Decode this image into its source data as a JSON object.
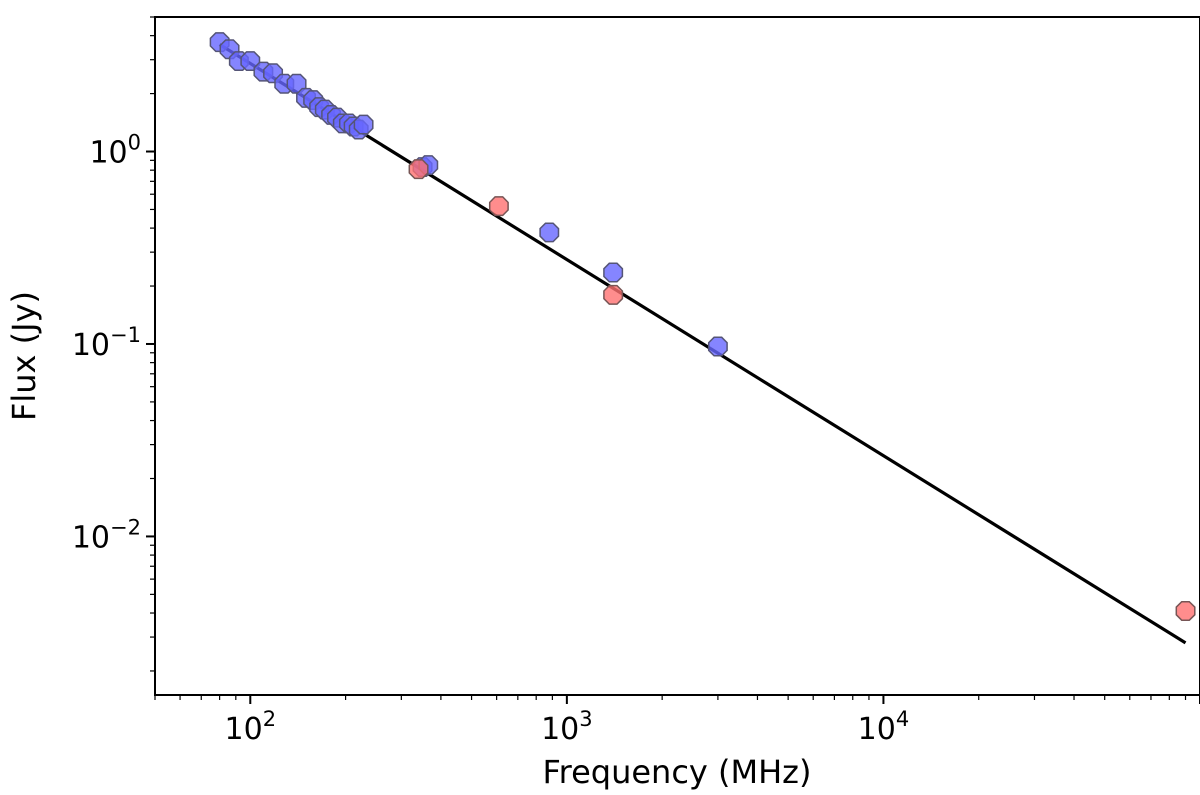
{
  "chart_data": {
    "type": "scatter",
    "title": "",
    "xlabel": "Frequency (MHz)",
    "ylabel": "Flux (Jy)",
    "xscale": "log",
    "yscale": "log",
    "xlim": [
      50,
      100000
    ],
    "ylim": [
      0.0015,
      5.0
    ],
    "x_ticks": [
      {
        "base": "10",
        "exp": "2",
        "value": 100
      },
      {
        "base": "10",
        "exp": "3",
        "value": 1000
      },
      {
        "base": "10",
        "exp": "4",
        "value": 10000
      }
    ],
    "y_ticks": [
      {
        "base": "10",
        "exp": "−2",
        "value": 0.01
      },
      {
        "base": "10",
        "exp": "−1",
        "value": 0.1
      },
      {
        "base": "10",
        "exp": "0",
        "value": 1
      }
    ],
    "grid": false,
    "legend": "none",
    "series": [
      {
        "color": "#6666ff",
        "edge_color": "#555577",
        "x": [
          80,
          86,
          92,
          100,
          110,
          118,
          128,
          140,
          150,
          158,
          165,
          172,
          180,
          188,
          196,
          205,
          212,
          220,
          228,
          350,
          365,
          880,
          1400,
          3000
        ],
        "y": [
          3.7,
          3.4,
          2.95,
          2.95,
          2.6,
          2.55,
          2.25,
          2.25,
          1.9,
          1.85,
          1.7,
          1.65,
          1.55,
          1.5,
          1.4,
          1.4,
          1.35,
          1.3,
          1.38,
          0.83,
          0.85,
          0.38,
          0.235,
          0.097
        ]
      },
      {
        "color": "#ff7070",
        "edge_color": "#775555",
        "x": [
          340,
          610,
          1400,
          90000
        ],
        "y": [
          0.81,
          0.52,
          0.18,
          0.0041
        ]
      }
    ],
    "fit_line": {
      "color": "#000000",
      "x": [
        80,
        90000
      ],
      "y": [
        3.6,
        0.0028
      ]
    }
  }
}
